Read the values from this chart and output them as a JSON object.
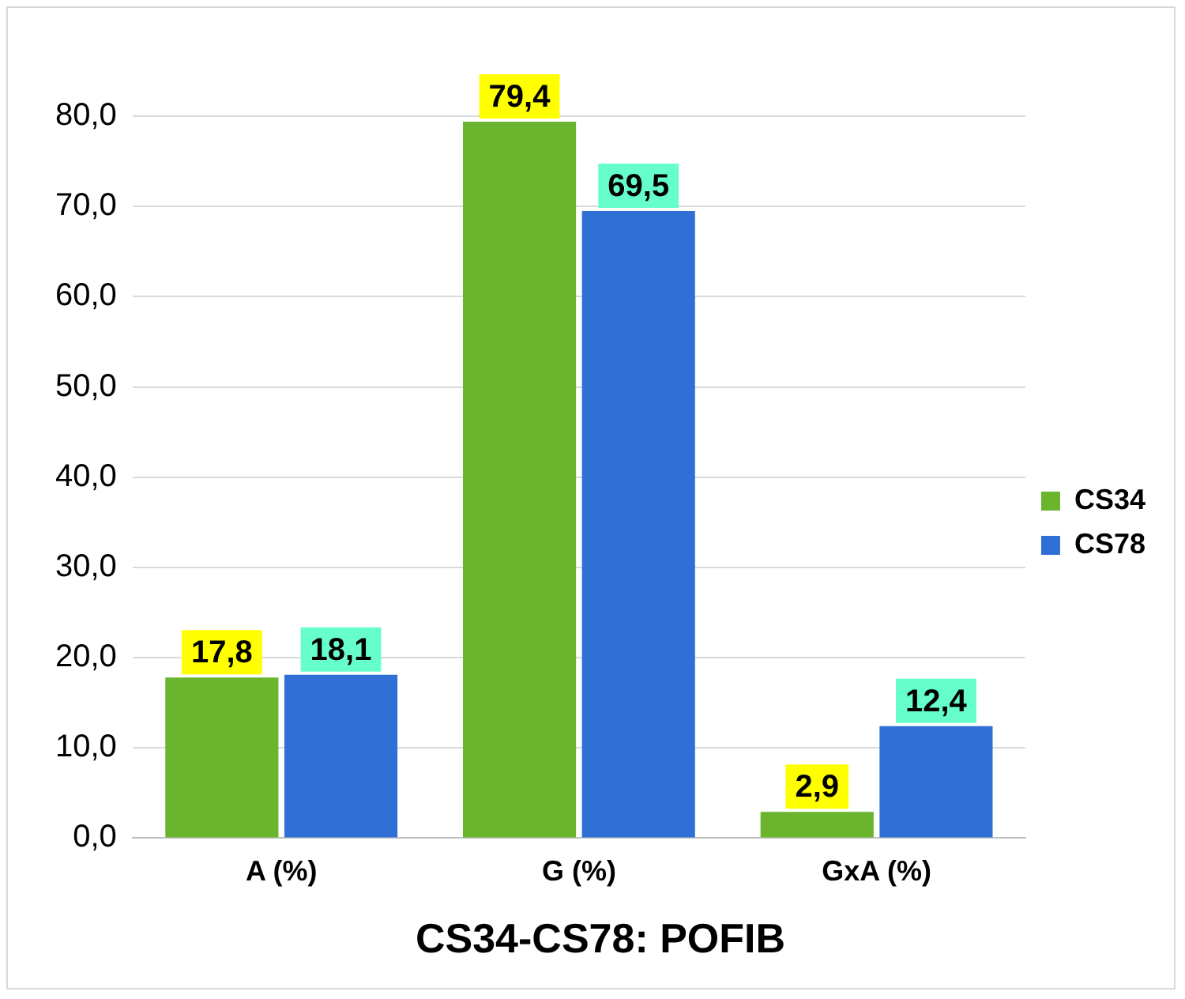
{
  "chart_data": {
    "type": "bar",
    "title": "CS34-CS78: POFIB",
    "categories": [
      "A (%)",
      "G (%)",
      "GxA (%)"
    ],
    "series": [
      {
        "name": "CS34",
        "color": "#6ab42e",
        "values": [
          17.8,
          79.4,
          2.9
        ],
        "value_labels": [
          "17,8",
          "79,4",
          "2,9"
        ]
      },
      {
        "name": "CS78",
        "color": "#2f6fd6",
        "values": [
          18.1,
          69.5,
          12.4
        ],
        "value_labels": [
          "18,1",
          "69,5",
          "12,4"
        ]
      }
    ],
    "ylim": [
      0,
      85
    ],
    "yticks": [
      {
        "value": 0,
        "label": "0,0"
      },
      {
        "value": 10,
        "label": "10,0"
      },
      {
        "value": 20,
        "label": "20,0"
      },
      {
        "value": 30,
        "label": "30,0"
      },
      {
        "value": 40,
        "label": "40,0"
      },
      {
        "value": 50,
        "label": "50,0"
      },
      {
        "value": 60,
        "label": "60,0"
      },
      {
        "value": 70,
        "label": "70,0"
      },
      {
        "value": 80,
        "label": "80,0"
      }
    ],
    "grid": "y",
    "legend": "right"
  }
}
